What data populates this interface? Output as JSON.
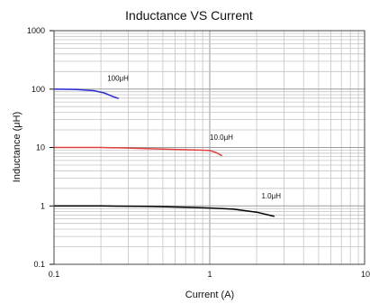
{
  "chart_data": {
    "type": "line",
    "title": "Inductance VS Current",
    "xlabel": "Current (A)",
    "ylabel": "Inductance (μH)",
    "xscale": "log",
    "yscale": "log",
    "xlim": [
      0.1,
      10
    ],
    "ylim": [
      0.1,
      1000
    ],
    "grid": true,
    "x_ticks": [
      {
        "value": 0.1,
        "label": "0.1"
      },
      {
        "value": 1,
        "label": "1"
      },
      {
        "value": 10,
        "label": "10"
      }
    ],
    "y_ticks": [
      {
        "value": 0.1,
        "label": "0.1"
      },
      {
        "value": 1,
        "label": "1"
      },
      {
        "value": 10,
        "label": "10"
      },
      {
        "value": 100,
        "label": "100"
      },
      {
        "value": 1000,
        "label": "1000"
      }
    ],
    "series": [
      {
        "name": "100μH",
        "color": "#2b2bd6",
        "label_at": {
          "x": 0.22,
          "y": 140
        },
        "points": [
          {
            "x": 0.1,
            "y": 100
          },
          {
            "x": 0.14,
            "y": 98
          },
          {
            "x": 0.18,
            "y": 94
          },
          {
            "x": 0.21,
            "y": 86
          },
          {
            "x": 0.24,
            "y": 74
          },
          {
            "x": 0.26,
            "y": 69
          }
        ]
      },
      {
        "name": "10.0μH",
        "color": "#e04040",
        "label_at": {
          "x": 1.0,
          "y": 13.5
        },
        "points": [
          {
            "x": 0.1,
            "y": 10
          },
          {
            "x": 0.2,
            "y": 10
          },
          {
            "x": 0.3,
            "y": 9.8
          },
          {
            "x": 0.5,
            "y": 9.4
          },
          {
            "x": 0.8,
            "y": 9.1
          },
          {
            "x": 1.0,
            "y": 8.9
          },
          {
            "x": 1.1,
            "y": 8.2
          },
          {
            "x": 1.2,
            "y": 7.2
          }
        ]
      },
      {
        "name": "1.0μH",
        "color": "#000000",
        "label_at": {
          "x": 2.15,
          "y": 1.35
        },
        "points": [
          {
            "x": 0.1,
            "y": 1.0
          },
          {
            "x": 0.2,
            "y": 1.0
          },
          {
            "x": 0.4,
            "y": 0.98
          },
          {
            "x": 0.7,
            "y": 0.95
          },
          {
            "x": 1.0,
            "y": 0.92
          },
          {
            "x": 1.4,
            "y": 0.88
          },
          {
            "x": 2.0,
            "y": 0.78
          },
          {
            "x": 2.6,
            "y": 0.66
          }
        ]
      }
    ]
  }
}
